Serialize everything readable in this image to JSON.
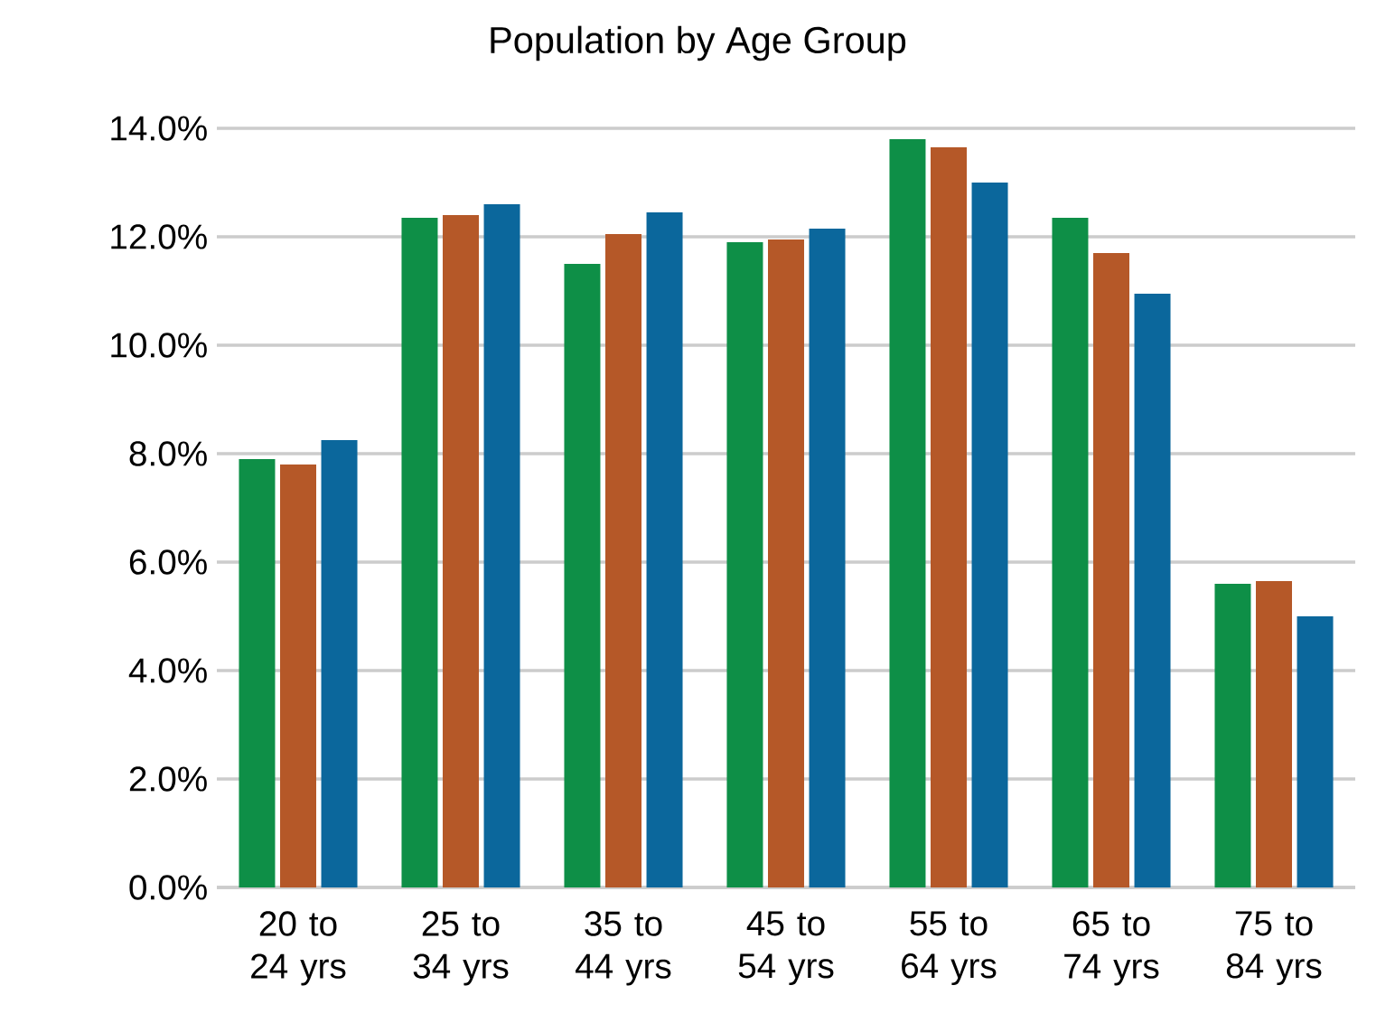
{
  "chart_data": {
    "type": "bar",
    "title": "Population by Age Group",
    "categories": [
      "20 to 24 yrs",
      "25 to 34 yrs",
      "35 to 44 yrs",
      "45 to 54 yrs",
      "55 to 64 yrs",
      "65 to 74 yrs",
      "75 to 84 yrs"
    ],
    "series": [
      {
        "color": "#0e8f47",
        "values": [
          7.9,
          12.35,
          11.5,
          11.9,
          13.8,
          12.35,
          5.6
        ]
      },
      {
        "color": "#b55828",
        "values": [
          7.8,
          12.4,
          12.05,
          11.95,
          13.65,
          11.7,
          5.65
        ]
      },
      {
        "color": "#0b679c",
        "values": [
          8.25,
          12.6,
          12.45,
          12.15,
          13.0,
          10.95,
          5.0
        ]
      }
    ],
    "ylim": [
      0,
      14
    ],
    "yticks": [
      {
        "value": 0,
        "label": "0.0%"
      },
      {
        "value": 2,
        "label": "2.0%"
      },
      {
        "value": 4,
        "label": "4.0%"
      },
      {
        "value": 6,
        "label": "6.0%"
      },
      {
        "value": 8,
        "label": "8.0%"
      },
      {
        "value": 10,
        "label": "10.0%"
      },
      {
        "value": 12,
        "label": "12.0%"
      },
      {
        "value": 14,
        "label": "14.0%"
      }
    ],
    "grid": "y"
  }
}
